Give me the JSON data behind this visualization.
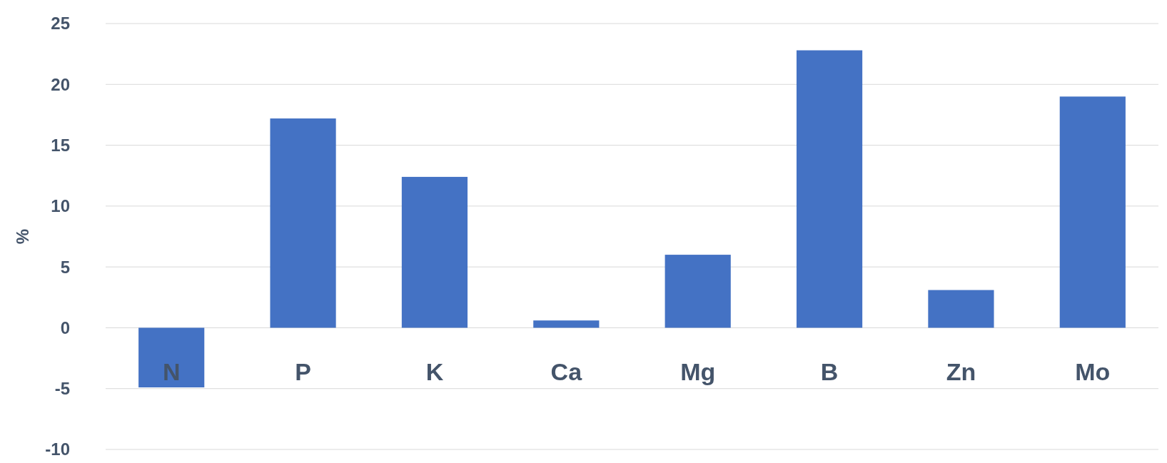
{
  "chart_data": {
    "type": "bar",
    "ylabel": "%",
    "categories": [
      "N",
      "P",
      "K",
      "Ca",
      "Mg",
      "B",
      "Zn",
      "Mo"
    ],
    "values": [
      -4.9,
      17.2,
      12.4,
      0.6,
      6.0,
      22.8,
      3.1,
      19.0
    ],
    "color": "#4472c4",
    "ylim": [
      -10,
      25
    ],
    "yticks": [
      -10,
      -5,
      0,
      5,
      10,
      15,
      20,
      25
    ],
    "grid": "y"
  }
}
